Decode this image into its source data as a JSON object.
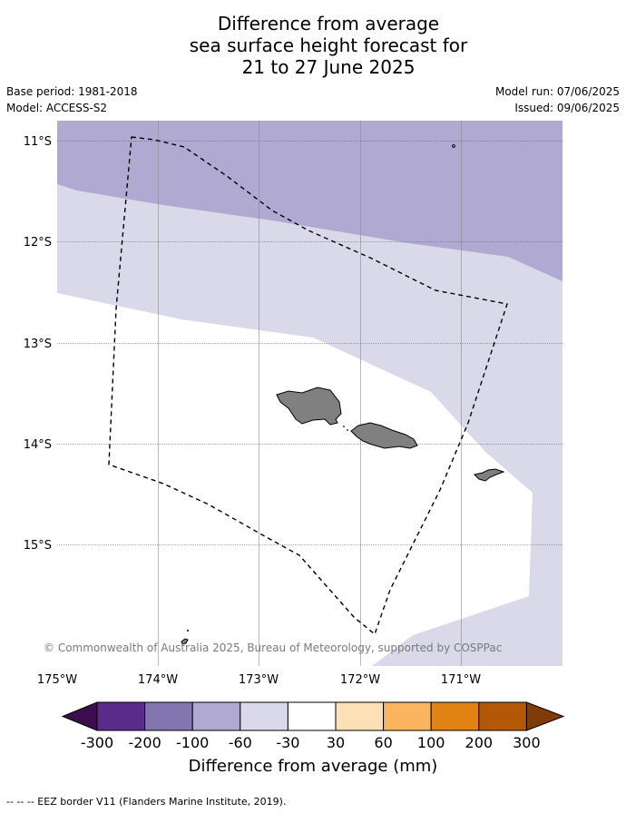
{
  "title": {
    "line1": "Difference from average",
    "line2": "sea surface height forecast for",
    "line3": "21 to 27 June 2025"
  },
  "meta": {
    "base_period": "Base period: 1981-2018",
    "model": "Model: ACCESS-S2",
    "model_run": "Model run: 07/06/2025",
    "issued": "Issued: 09/06/2025"
  },
  "map": {
    "lat_labels": [
      "11°S",
      "12°S",
      "13°S",
      "14°S",
      "15°S"
    ],
    "lon_labels": [
      "175°W",
      "174°W",
      "173°W",
      "172°W",
      "171°W"
    ],
    "copyright": "© Commonwealth of Australia 2025, Bureau of Meteorology, supported by COSPPac",
    "colors": {
      "band_neg_100_60": "#b0aad2",
      "band_neg_60_30": "#d9d9ea",
      "land": "#808080",
      "ocean_neutral": "#ffffff"
    }
  },
  "colorbar": {
    "title": "Difference from average (mm)",
    "tick_labels": [
      "-300",
      "-200",
      "-100",
      "-60",
      "-30",
      "30",
      "60",
      "100",
      "200",
      "300"
    ],
    "colors": [
      "#3b0f4f",
      "#5a2b8a",
      "#8375b0",
      "#b0aad2",
      "#d9d9ea",
      "#ffffff",
      "#fde0b5",
      "#fbb45f",
      "#e08214",
      "#b35806",
      "#7f3b08"
    ]
  },
  "footer": "-- -- -- EEZ border V11 (Flanders Marine Institute, 2019)."
}
